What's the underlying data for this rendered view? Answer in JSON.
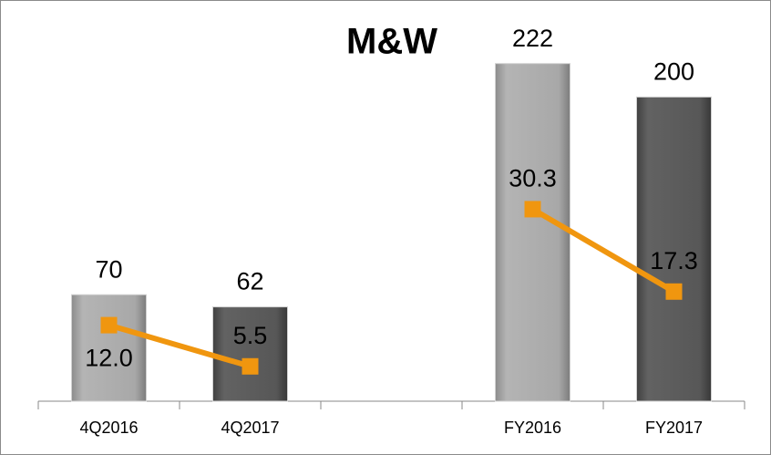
{
  "chart_data": {
    "type": "bar",
    "title": "M&W",
    "categories": [
      "4Q2016",
      "4Q2017",
      null,
      "FY2016",
      "FY2017"
    ],
    "ylim": [
      0,
      250
    ],
    "y2lim": [
      0,
      60
    ],
    "series": [
      {
        "type": "bar",
        "colors": [
          "#a6a6a6",
          "#595959",
          null,
          "#a6a6a6",
          "#595959"
        ],
        "values": [
          70,
          62,
          null,
          222,
          200
        ]
      },
      {
        "type": "line",
        "axis": "y2",
        "color": "#f0960f",
        "values": [
          12.0,
          5.5,
          null,
          30.3,
          17.3
        ],
        "value_labels": [
          "12.0",
          "5.5",
          null,
          "30.3",
          "17.3"
        ]
      }
    ]
  }
}
